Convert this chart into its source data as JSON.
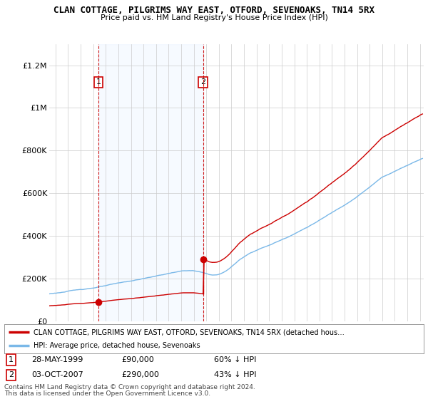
{
  "title": "CLAN COTTAGE, PILGRIMS WAY EAST, OTFORD, SEVENOAKS, TN14 5RX",
  "subtitle": "Price paid vs. HM Land Registry's House Price Index (HPI)",
  "ylim": [
    0,
    1300000
  ],
  "yticks": [
    0,
    200000,
    400000,
    600000,
    800000,
    1000000,
    1200000
  ],
  "ytick_labels": [
    "£0",
    "£200K",
    "£400K",
    "£600K",
    "£800K",
    "£1M",
    "£1.2M"
  ],
  "xlim_start": 1995.5,
  "xlim_end": 2025.3,
  "sale1_date_x": 1999.41,
  "sale1_price": 90000,
  "sale1_label": "1",
  "sale1_date_str": "28-MAY-1999",
  "sale1_pct": "60% ↓ HPI",
  "sale2_date_x": 2007.75,
  "sale2_price": 290000,
  "sale2_label": "2",
  "sale2_date_str": "03-OCT-2007",
  "sale2_pct": "43% ↓ HPI",
  "legend_red_label": "CLAN COTTAGE, PILGRIMS WAY EAST, OTFORD, SEVENOAKS, TN14 5RX (detached hous…",
  "legend_blue_label": "HPI: Average price, detached house, Sevenoaks",
  "footer1": "Contains HM Land Registry data © Crown copyright and database right 2024.",
  "footer2": "This data is licensed under the Open Government Licence v3.0.",
  "hpi_color": "#7ab8e8",
  "price_color": "#cc0000",
  "shading_color": "#ddeeff",
  "sale_marker_color": "#cc0000",
  "dashed_line_color": "#cc0000",
  "background_color": "#ffffff",
  "grid_color": "#cccccc"
}
